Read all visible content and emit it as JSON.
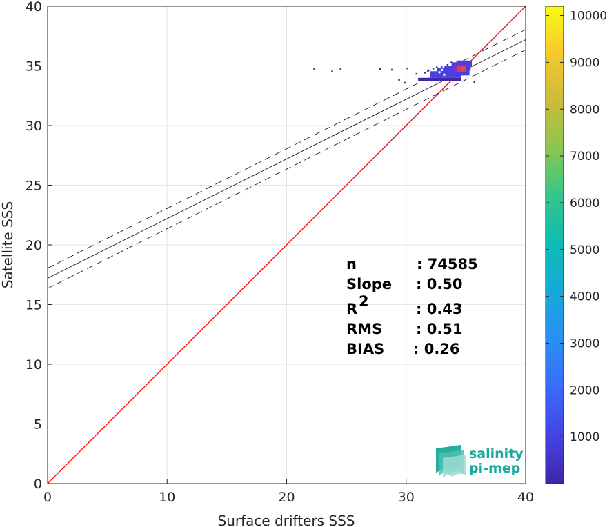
{
  "chart_data": {
    "type": "heatmap",
    "xlabel": "Surface drifters SSS",
    "ylabel": "Satellite SSS",
    "xlim": [
      0,
      40
    ],
    "ylim": [
      0,
      40
    ],
    "xticks": [
      "0",
      "10",
      "20",
      "30",
      "40"
    ],
    "yticks": [
      "0",
      "5",
      "10",
      "15",
      "20",
      "25",
      "30",
      "35",
      "40"
    ],
    "grid": true,
    "colorbar": {
      "range": [
        0,
        10200
      ],
      "ticks": [
        "1000",
        "2000",
        "3000",
        "4000",
        "5000",
        "6000",
        "7000",
        "8000",
        "9000",
        "10000"
      ],
      "colormap": "parula"
    },
    "identity_line": {
      "from": [
        0,
        0
      ],
      "to": [
        40,
        40
      ],
      "color": "#ff0000"
    },
    "regression": {
      "slope": 0.5,
      "intercept": 17.2,
      "band_offset": 0.85,
      "color": "#000000"
    },
    "density_points": [
      {
        "x": 22.3,
        "y": 34.75,
        "count": 1
      },
      {
        "x": 24.5,
        "y": 34.75,
        "count": 1
      },
      {
        "x": 23.8,
        "y": 34.55,
        "count": 1
      },
      {
        "x": 27.8,
        "y": 34.75,
        "count": 1
      },
      {
        "x": 28.8,
        "y": 34.7,
        "count": 1
      },
      {
        "x": 30.1,
        "y": 34.8,
        "count": 1
      },
      {
        "x": 31.8,
        "y": 34.55,
        "count": 1
      },
      {
        "x": 29.4,
        "y": 33.85,
        "count": 1
      },
      {
        "x": 29.9,
        "y": 33.6,
        "count": 1
      },
      {
        "x": 35.7,
        "y": 33.65,
        "count": 1
      }
    ],
    "stats": [
      {
        "label": "n",
        "value": ": 74585"
      },
      {
        "label": "Slope",
        "value": ": 0.50"
      },
      {
        "label": "R",
        "sup": "2",
        "value": ": 0.43"
      },
      {
        "label": "RMS",
        "value": ": 0.51"
      },
      {
        "label": "BIAS",
        "value": ": 0.26"
      }
    ]
  },
  "logo": {
    "line1": "salinity",
    "line2": "pi-mep"
  },
  "colors": {
    "identity": "#ff0000",
    "scatter_low": "#3e26a8",
    "scatter_mid": "#4a3fe0",
    "scatter_high": "#d4367a"
  }
}
